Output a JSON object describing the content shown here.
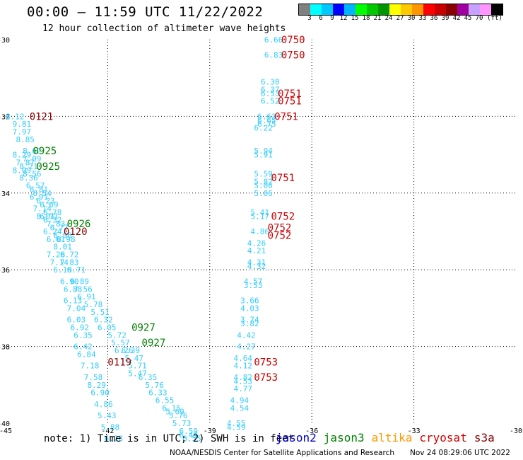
{
  "header": {
    "title": "00:00 — 11:59 UTC 11/22/2022",
    "subtitle": "12 hour collection of altimeter wave heights"
  },
  "colorbar": {
    "colors": [
      "#808080",
      "#00ffff",
      "#00c8ff",
      "#0000ff",
      "#00b4ff",
      "#00ff00",
      "#00c800",
      "#009600",
      "#ffff00",
      "#ffc800",
      "#ff9600",
      "#ff0000",
      "#c80000",
      "#8b0000",
      "#a000a0",
      "#c8a0ff",
      "#ff96ff",
      "#000000"
    ],
    "labels": [
      "3",
      "6",
      "9",
      "12",
      "15",
      "18",
      "21",
      "24",
      "27",
      "30",
      "33",
      "36",
      "39",
      "42",
      "45",
      "70",
      "(ft)"
    ]
  },
  "map": {
    "lon_range": [
      -45,
      -30
    ],
    "lat_range": [
      -40,
      -30
    ],
    "x_ticks": [
      "-45",
      "-42",
      "-39",
      "-36",
      "-33",
      "-30"
    ],
    "y_ticks": [
      "-30",
      "-32",
      "-34",
      "-36",
      "-38",
      "-40"
    ],
    "grid": "dotted",
    "colors": {
      "cyan": "#33ccff",
      "red": "#ff0000",
      "green": "#008000",
      "darkred": "#8b0000",
      "navy": "#000080",
      "time": "#cc0000"
    },
    "west_track": [
      [
        "8.12",
        -45.0,
        -32.0
      ],
      [
        "9.81",
        -44.8,
        -32.2
      ],
      [
        "7.97",
        -44.8,
        -32.4
      ],
      [
        "8.85",
        -44.7,
        -32.6
      ],
      [
        "8.62",
        -44.5,
        -32.9
      ],
      [
        "8.29",
        -44.8,
        -33.0
      ],
      [
        "7.09",
        -44.5,
        -33.1
      ],
      [
        "7.87",
        -44.7,
        -33.2
      ],
      [
        "8.21",
        -44.6,
        -33.3
      ],
      [
        "8.09",
        -44.8,
        -33.4
      ],
      [
        "8.56",
        -44.5,
        -33.5
      ],
      [
        "8.36",
        -44.6,
        -33.6
      ],
      [
        "6.57",
        -44.4,
        -33.8
      ],
      [
        "6.81",
        -44.3,
        -33.9
      ],
      [
        "6.54",
        -44.2,
        -34.0
      ],
      [
        "6.91",
        -44.3,
        -34.1
      ],
      [
        "6.23",
        -44.1,
        -34.2
      ],
      [
        "6.69",
        -44.0,
        -34.3
      ],
      [
        "7.14",
        -44.2,
        -34.4
      ],
      [
        "6.78",
        -43.9,
        -34.5
      ],
      [
        "6.71",
        -44.0,
        -34.6
      ],
      [
        "8.01",
        -44.1,
        -34.6
      ],
      [
        "6.32",
        -43.9,
        -34.7
      ],
      [
        "7.83",
        -43.8,
        -34.8
      ],
      [
        "6.77",
        -43.7,
        -34.9
      ],
      [
        "6.24",
        -43.9,
        -35.0
      ],
      [
        "6.96",
        -43.6,
        -35.1
      ],
      [
        "6.98",
        -43.5,
        -35.2
      ],
      [
        "6.61",
        -43.8,
        -35.2
      ],
      [
        "8.01",
        -43.6,
        -35.4
      ],
      [
        "7.28",
        -43.8,
        -35.6
      ],
      [
        "6.72",
        -43.4,
        -35.6
      ],
      [
        "7.14",
        -43.7,
        -35.8
      ],
      [
        "7.83",
        -43.4,
        -35.8
      ],
      [
        "6.18",
        -43.6,
        -36.0
      ],
      [
        "6.71",
        -43.2,
        -36.0
      ],
      [
        "6.90",
        -43.4,
        -36.3
      ],
      [
        "6.89",
        -43.1,
        -36.3
      ],
      [
        "6.88",
        -43.3,
        -36.5
      ],
      [
        "7.56",
        -43.0,
        -36.5
      ],
      [
        "6.13",
        -43.3,
        -36.8
      ],
      [
        "6.91",
        -42.9,
        -36.7
      ],
      [
        "5.78",
        -42.7,
        -36.9
      ],
      [
        "7.04",
        -43.2,
        -37.0
      ],
      [
        "5.51",
        -42.5,
        -37.1
      ],
      [
        "6.03",
        -43.2,
        -37.3
      ],
      [
        "6.32",
        -42.4,
        -37.3
      ],
      [
        "6.92",
        -43.1,
        -37.5
      ],
      [
        "6.05",
        -42.3,
        -37.5
      ],
      [
        "6.35",
        -43.0,
        -37.7
      ],
      [
        "5.72",
        -42.0,
        -37.7
      ],
      [
        "5.57",
        -41.9,
        -37.9
      ],
      [
        "6.42",
        -43.0,
        -38.0
      ],
      [
        "6.26",
        -41.8,
        -38.1
      ],
      [
        "6.39",
        -41.6,
        -38.1
      ],
      [
        "5.47",
        -41.5,
        -38.3
      ],
      [
        "6.84",
        -42.9,
        -38.2
      ],
      [
        "5.71",
        -41.4,
        -38.5
      ],
      [
        "7.18",
        -42.8,
        -38.5
      ],
      [
        "5.47",
        -41.4,
        -38.7
      ],
      [
        "7.58",
        -42.7,
        -38.8
      ],
      [
        "6.35",
        -41.1,
        -38.8
      ],
      [
        "8.29",
        -42.6,
        -39.0
      ],
      [
        "5.76",
        -40.9,
        -39.0
      ],
      [
        "6.33",
        -40.8,
        -39.2
      ],
      [
        "6.90",
        -42.5,
        -39.2
      ],
      [
        "6.55",
        -40.6,
        -39.4
      ],
      [
        "4.86",
        -42.4,
        -39.5
      ],
      [
        "6.15",
        -40.4,
        -39.6
      ],
      [
        "5.69",
        -40.3,
        -39.7
      ],
      [
        "5.76",
        -40.2,
        -39.8
      ],
      [
        "5.43",
        -42.3,
        -39.8
      ],
      [
        "5.73",
        -40.1,
        -40.0
      ],
      [
        "5.88",
        -42.2,
        -40.1
      ],
      [
        "6.59",
        -39.9,
        -40.2
      ],
      [
        "6.28",
        -42.1,
        -40.4
      ],
      [
        "6.49",
        -39.9,
        -40.3
      ],
      [
        "6.55",
        -39.8,
        -40.4
      ]
    ],
    "east_track": [
      [
        "6.66",
        -37.4,
        -30.0
      ],
      [
        "6.83",
        -37.4,
        -30.4
      ],
      [
        "6.30",
        -37.5,
        -31.1
      ],
      [
        "6.37",
        -37.5,
        -31.3
      ],
      [
        "6.53",
        -37.5,
        -31.4
      ],
      [
        "6.52",
        -37.5,
        -31.6
      ],
      [
        "6.63",
        -37.6,
        -32.0
      ],
      [
        "6.65",
        -37.6,
        -32.1
      ],
      [
        "6.75",
        -37.6,
        -32.2
      ],
      [
        "6.22",
        -37.7,
        -32.3
      ],
      [
        "5.94",
        -37.7,
        -32.9
      ],
      [
        "5.91",
        -37.7,
        -33.0
      ],
      [
        "5.59",
        -37.7,
        -33.5
      ],
      [
        "5.82",
        -37.7,
        -33.7
      ],
      [
        "5.06",
        -37.7,
        -33.8
      ],
      [
        "5.06",
        -37.7,
        -34.0
      ],
      [
        "5.41",
        -37.8,
        -34.5
      ],
      [
        "5.17",
        -37.8,
        -34.6
      ],
      [
        "4.86",
        -37.8,
        -35.0
      ],
      [
        "4.26",
        -37.9,
        -35.3
      ],
      [
        "4.21",
        -37.9,
        -35.5
      ],
      [
        "4.31",
        -37.9,
        -35.8
      ],
      [
        "4.32",
        -37.9,
        -35.9
      ],
      [
        "4.57",
        -38.0,
        -36.3
      ],
      [
        "3.53",
        -38.0,
        -36.4
      ],
      [
        "3.66",
        -38.1,
        -36.8
      ],
      [
        "4.03",
        -38.1,
        -37.0
      ],
      [
        "3.74",
        -38.1,
        -37.3
      ],
      [
        "3.82",
        -38.1,
        -37.4
      ],
      [
        "4.42",
        -38.2,
        -37.7
      ],
      [
        "4.27",
        -38.2,
        -38.0
      ],
      [
        "4.64",
        -38.3,
        -38.3
      ],
      [
        "4.12",
        -38.3,
        -38.5
      ],
      [
        "4.82",
        -38.3,
        -38.8
      ],
      [
        "4.53",
        -38.3,
        -38.9
      ],
      [
        "4.77",
        -38.3,
        -39.1
      ],
      [
        "4.94",
        -38.4,
        -39.4
      ],
      [
        "4.54",
        -38.4,
        -39.6
      ],
      [
        "4.55",
        -38.5,
        -40.0
      ],
      [
        "4.59",
        -38.5,
        -40.1
      ]
    ],
    "time_labels": [
      {
        "text": "0121",
        "lon": -44.3,
        "lat": -32.0,
        "color": "darkred"
      },
      {
        "text": "0925",
        "lon": -44.2,
        "lat": -32.9,
        "color": "green"
      },
      {
        "text": "0925",
        "lon": -44.1,
        "lat": -33.3,
        "color": "green"
      },
      {
        "text": "0926",
        "lon": -43.2,
        "lat": -34.8,
        "color": "green"
      },
      {
        "text": "0120",
        "lon": -43.3,
        "lat": -35.0,
        "color": "darkred"
      },
      {
        "text": "0927",
        "lon": -41.3,
        "lat": -37.5,
        "color": "green"
      },
      {
        "text": "0927",
        "lon": -41.0,
        "lat": -37.9,
        "color": "green"
      },
      {
        "text": "0119",
        "lon": -42.0,
        "lat": -38.4,
        "color": "darkred"
      },
      {
        "text": "0750",
        "lon": -36.9,
        "lat": -30.0,
        "color": "time"
      },
      {
        "text": "0750",
        "lon": -36.9,
        "lat": -30.4,
        "color": "time"
      },
      {
        "text": "0751",
        "lon": -37.0,
        "lat": -31.4,
        "color": "time"
      },
      {
        "text": "0751",
        "lon": -37.0,
        "lat": -31.6,
        "color": "time"
      },
      {
        "text": "0751",
        "lon": -37.1,
        "lat": -32.0,
        "color": "time"
      },
      {
        "text": "0751",
        "lon": -37.2,
        "lat": -33.6,
        "color": "time"
      },
      {
        "text": "0752",
        "lon": -37.2,
        "lat": -34.6,
        "color": "time"
      },
      {
        "text": "0752",
        "lon": -37.3,
        "lat": -34.9,
        "color": "time"
      },
      {
        "text": "0752",
        "lon": -37.3,
        "lat": -35.1,
        "color": "time"
      },
      {
        "text": "0753",
        "lon": -37.7,
        "lat": -38.4,
        "color": "time"
      },
      {
        "text": "0753",
        "lon": -37.7,
        "lat": -38.8,
        "color": "time"
      }
    ]
  },
  "footer": {
    "note": "note: 1) Time is in UTC; 2) SWH is in feet",
    "legend": [
      {
        "label": "jason2",
        "color": "#0000cc"
      },
      {
        "label": "jason3",
        "color": "#008000"
      },
      {
        "label": "altika",
        "color": "#ff9900"
      },
      {
        "label": "cryosat",
        "color": "#cc0000"
      },
      {
        "label": "s3a",
        "color": "#800000"
      }
    ],
    "credit": "NOAA/NESDIS Center for Satellite Applications and Research",
    "timestamp": "Nov 24 08:29:06 UTC 2022"
  }
}
